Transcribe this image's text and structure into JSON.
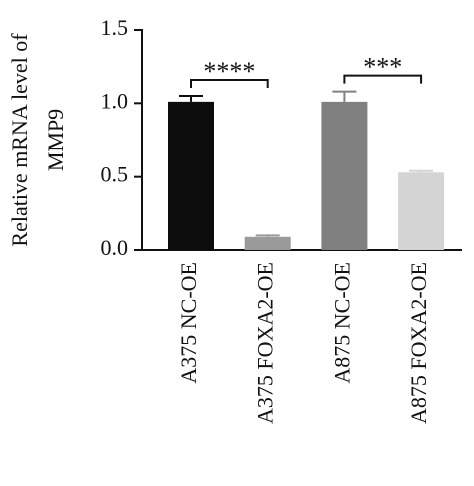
{
  "chart_data": {
    "type": "bar",
    "y_label": [
      "Relative mRNA level of",
      "MMP9"
    ],
    "categories": [
      "A375 NC-OE",
      "A375 FOXA2-OE",
      "A875 NC-OE",
      "A875 FOXA2-OE"
    ],
    "values": [
      1.01,
      0.09,
      1.01,
      0.53
    ],
    "errors": [
      0.04,
      0.01,
      0.07,
      0.01
    ],
    "colors": [
      "#0d0d0d",
      "#9a9a9a",
      "#808080",
      "#d4d4d4"
    ],
    "significance": [
      "****",
      "***"
    ],
    "ylim": [
      0,
      1.5
    ],
    "yticks": [
      {
        "value": 0,
        "label": "0.0"
      },
      0.5,
      {
        "value": 1,
        "label": "1.0"
      },
      1.5
    ]
  }
}
